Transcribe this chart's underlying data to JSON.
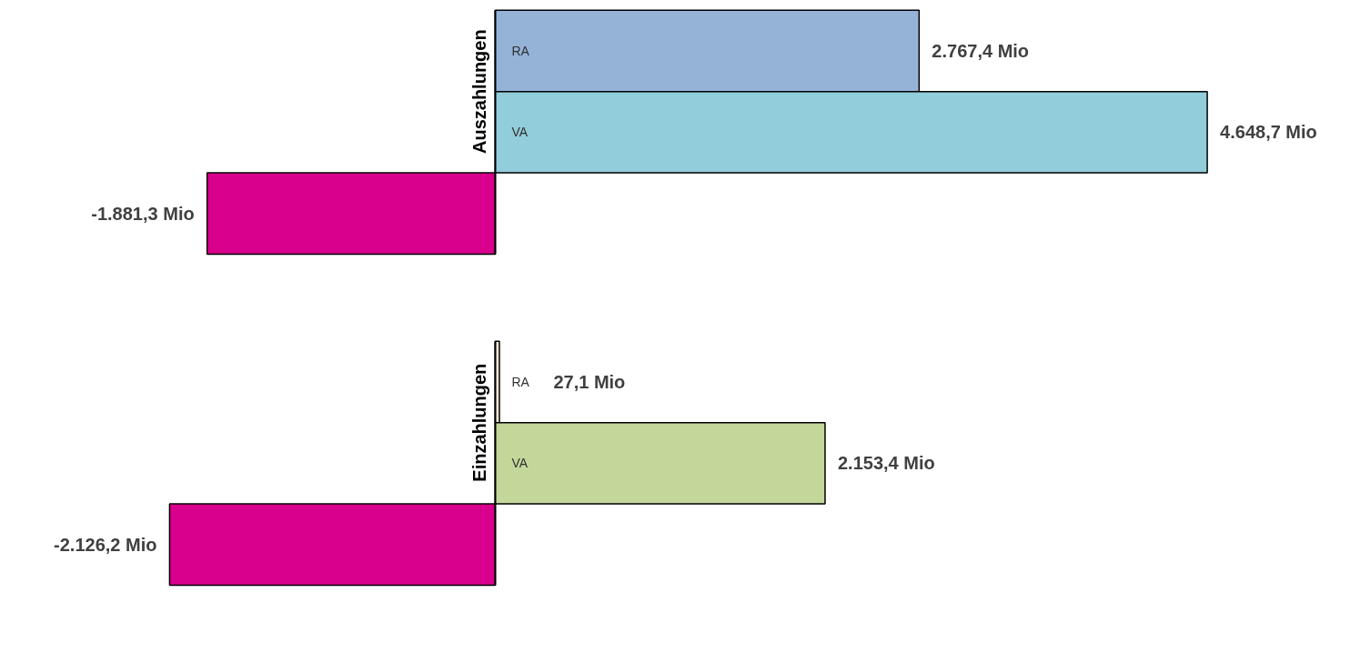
{
  "chart_data": [
    {
      "type": "bar",
      "orientation": "horizontal",
      "ylabel": "Auszahlungen",
      "categories": [
        "RA",
        "VA",
        null
      ],
      "values": [
        2767.4,
        4648.7,
        -1881.3
      ],
      "colors": [
        "#95b3d7",
        "#92cddc",
        "#d9008d"
      ],
      "value_labels": [
        "2.767,4 Mio",
        "4.648,7 Mio",
        "-1.881,3 Mio"
      ]
    },
    {
      "type": "bar",
      "orientation": "horizontal",
      "ylabel": "Einzahlungen",
      "categories": [
        "RA",
        "VA",
        null
      ],
      "values": [
        27.1,
        2153.4,
        -2126.2
      ],
      "colors": [
        "#f2ead2",
        "#c4d79b",
        "#d9008d"
      ],
      "value_labels": [
        "27,1 Mio",
        "2.153,4 Mio",
        "-2.126,2 Mio"
      ]
    }
  ]
}
